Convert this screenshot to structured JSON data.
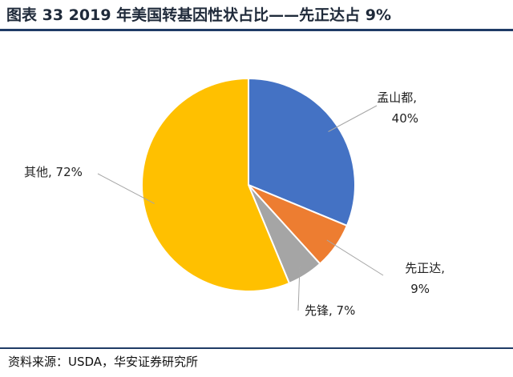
{
  "title": "图表 33 2019 年美国转基因性状占比——先正达占 9%",
  "source": "资料来源：USDA，华安证券研究所",
  "chart_data": {
    "type": "pie",
    "title": "",
    "legend": "none",
    "slices": [
      {
        "label_line1": "孟山都,",
        "label_line2": "40%",
        "name": "孟山都",
        "value": 40,
        "color": "#4472C4"
      },
      {
        "label_line1": "先正达,",
        "label_line2": "9%",
        "name": "先正达",
        "value": 9,
        "color": "#ED7D31"
      },
      {
        "label_line1": "先锋, 7%",
        "label_line2": "",
        "name": "先锋",
        "value": 7,
        "color": "#A5A5A5"
      },
      {
        "label_line1": "其他, 72%",
        "label_line2": "",
        "name": "其他",
        "value": 72,
        "color": "#FFC000"
      }
    ]
  }
}
